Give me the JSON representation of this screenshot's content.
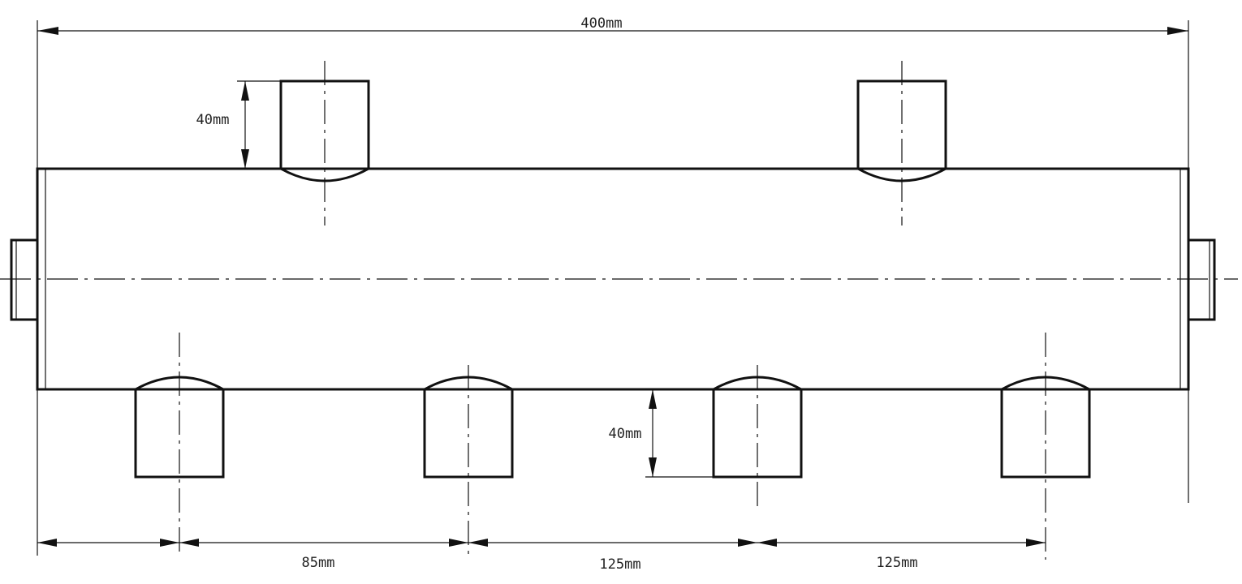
{
  "labels": {
    "total_length": "400mm",
    "top_pipe_height": "40mm",
    "bottom_pipe_height": "40mm",
    "spacing_1": "85mm",
    "spacing_2": "125mm",
    "spacing_3": "125mm"
  }
}
